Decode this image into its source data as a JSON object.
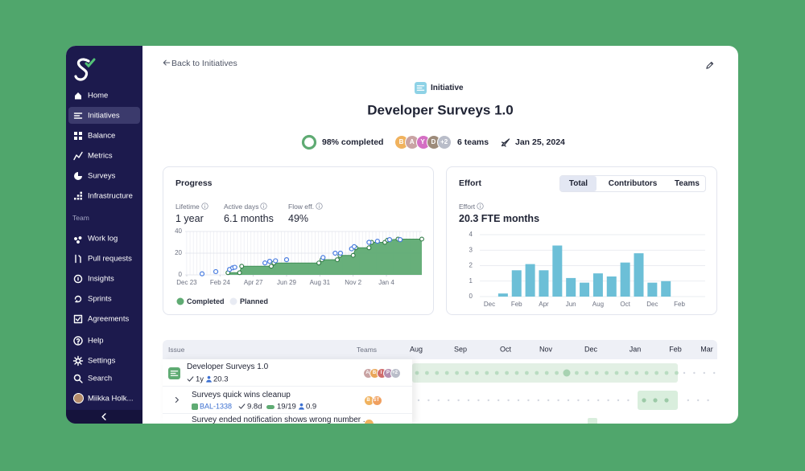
{
  "sidebar": {
    "nav": [
      "Home",
      "Initiatives",
      "Balance",
      "Metrics",
      "Surveys",
      "Infrastructure"
    ],
    "active": 1,
    "team_heading": "Team",
    "team_nav": [
      "Work log",
      "Pull requests",
      "Insights",
      "Sprints",
      "Agreements"
    ],
    "utility_nav": [
      "Help",
      "Settings",
      "Search"
    ],
    "user": "Miikka Holk..."
  },
  "header": {
    "back_link": "Back to Initiatives",
    "badge": "Initiative",
    "title": "Developer Surveys 1.0",
    "completion": "98% completed",
    "team_avatars": [
      {
        "label": "B",
        "color": "#f0b25e"
      },
      {
        "label": "A",
        "color": "#c9a3a3"
      },
      {
        "label": "Y",
        "color": "#d46fc3"
      },
      {
        "label": "D",
        "color": "#9d8b7a"
      },
      {
        "label": "+2",
        "color": "#b9bdc9"
      }
    ],
    "teams": "6 teams",
    "date": "Jan 25, 2024"
  },
  "chart_data": [
    {
      "type": "area",
      "title": "Progress",
      "stats": [
        {
          "label": "Lifetime",
          "value": "1 year"
        },
        {
          "label": "Active days",
          "value": "6.1 months"
        },
        {
          "label": "Flow eff.",
          "value": "49%"
        }
      ],
      "xlim": [
        -3,
        445
      ],
      "xticks": [
        {
          "value": 0,
          "label": "Dec 23"
        },
        {
          "value": 63,
          "label": "Feb 24"
        },
        {
          "value": 126,
          "label": "Apr 27"
        },
        {
          "value": 189,
          "label": "Jun 29"
        },
        {
          "value": 252,
          "label": "Aug 31"
        },
        {
          "value": 315,
          "label": "Nov 2"
        },
        {
          "value": 378,
          "label": "Jan 4"
        }
      ],
      "ylim": [
        0,
        40
      ],
      "yticks": [
        0,
        20,
        40
      ],
      "grid": true,
      "series": [
        {
          "name": "Completed",
          "color": "#5fab73",
          "x": [
            78,
            100,
            104,
            160,
            165,
            250,
            256,
            285,
            290,
            315,
            320,
            345,
            350,
            375,
            380,
            400,
            445
          ],
          "values": [
            2,
            2,
            8,
            8,
            11,
            11,
            14,
            14,
            18,
            18,
            25,
            25,
            30,
            30,
            32,
            33,
            33
          ]
        },
        {
          "name": "Planned",
          "color": "#4a7de0",
          "x": [
            29,
            55,
            81,
            87,
            91,
            148,
            157,
            168,
            189,
            258,
            281,
            291,
            312,
            317,
            345,
            361,
            384,
            404
          ],
          "values": [
            1,
            3,
            5,
            6.5,
            7,
            11,
            12.5,
            13,
            14,
            16,
            20,
            20,
            24,
            26,
            30,
            31,
            32.5,
            32.5
          ]
        }
      ]
    },
    {
      "type": "bar",
      "title": "Effort",
      "tabs": [
        "Total",
        "Contributors",
        "Teams"
      ],
      "active_tab": 0,
      "metric_label": "Effort",
      "metric_value": "20.3 FTE months",
      "categories": [
        "Dec",
        null,
        "Feb",
        null,
        "Apr",
        null,
        "Jun",
        null,
        "Aug",
        null,
        "Oct",
        null,
        "Dec",
        null,
        "Feb"
      ],
      "values": [
        null,
        0.2,
        1.7,
        2.1,
        1.7,
        3.3,
        1.2,
        0.9,
        1.5,
        1.3,
        2.2,
        2.8,
        0.9,
        1.0,
        null
      ],
      "color": "#6cbfd7",
      "ylim": [
        0,
        4
      ],
      "yticks": [
        0,
        1,
        2,
        3,
        4
      ],
      "grid": true
    }
  ],
  "timeline": {
    "columns": [
      "Issue",
      "Teams"
    ],
    "months": [
      "Aug",
      "Sep",
      "Oct",
      "Nov",
      "Dec",
      "Jan",
      "Feb",
      "Mar"
    ],
    "rows": [
      {
        "title": "Developer Surveys 1.0",
        "meta": [
          "1y",
          "20.3"
        ],
        "teams": [
          {
            "label": "A",
            "color": "#c9a3a3"
          },
          {
            "label": "B",
            "color": "#e9a65a"
          },
          {
            "label": "I",
            "color": "#d06c6c"
          },
          {
            "label": "P",
            "color": "#b58fb0"
          },
          {
            "label": "+2",
            "color": "#b9bdc9"
          }
        ]
      },
      {
        "title": "Surveys quick wins cleanup",
        "key": "BAL-1338",
        "meta": [
          "9.8d",
          "19/19",
          "0.9"
        ],
        "teams": [
          {
            "label": "B",
            "color": "#f0b25e"
          },
          {
            "label": "ST",
            "color": "#f0a060"
          }
        ]
      },
      {
        "title": "Survey ended notification shows wrong number ...",
        "teams": [
          {
            "color": "#f0b25e"
          }
        ]
      }
    ]
  }
}
